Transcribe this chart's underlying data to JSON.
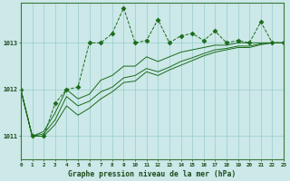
{
  "title": "Graphe pression niveau de la mer (hPa)",
  "bg_color": "#cce8e8",
  "grid_color": "#99cccc",
  "line_color": "#1a6b1a",
  "xlim": [
    0,
    23
  ],
  "ylim": [
    1010.5,
    1013.85
  ],
  "yticks": [
    1011,
    1012,
    1013
  ],
  "xticks": [
    0,
    1,
    2,
    3,
    4,
    5,
    6,
    7,
    8,
    9,
    10,
    11,
    12,
    13,
    14,
    15,
    16,
    17,
    18,
    19,
    20,
    21,
    22,
    23
  ],
  "series1": [
    1012.0,
    1011.0,
    1011.0,
    1011.7,
    1012.0,
    1012.05,
    1013.0,
    1013.0,
    1013.2,
    1013.75,
    1013.0,
    1013.05,
    1013.5,
    1013.0,
    1013.15,
    1013.2,
    1013.05,
    1013.25,
    1013.0,
    1013.05,
    1013.0,
    1013.45,
    1013.0,
    1013.0
  ],
  "series2": [
    1012.0,
    1011.0,
    1011.1,
    1011.5,
    1012.0,
    1011.8,
    1011.9,
    1012.2,
    1012.3,
    1012.5,
    1012.5,
    1012.7,
    1012.6,
    1012.7,
    1012.8,
    1012.85,
    1012.9,
    1012.95,
    1012.95,
    1013.0,
    1013.0,
    1013.0,
    1013.0,
    1013.0
  ],
  "series3": [
    1012.0,
    1011.0,
    1011.05,
    1011.35,
    1011.85,
    1011.65,
    1011.75,
    1011.95,
    1012.05,
    1012.25,
    1012.3,
    1012.45,
    1012.38,
    1012.48,
    1012.6,
    1012.68,
    1012.77,
    1012.85,
    1012.88,
    1012.93,
    1012.93,
    1012.98,
    1013.0,
    1013.0
  ],
  "series4": [
    1012.0,
    1011.0,
    1011.0,
    1011.25,
    1011.65,
    1011.45,
    1011.6,
    1011.8,
    1011.95,
    1012.15,
    1012.18,
    1012.38,
    1012.3,
    1012.42,
    1012.52,
    1012.62,
    1012.72,
    1012.8,
    1012.85,
    1012.9,
    1012.9,
    1012.96,
    1013.0,
    1013.0
  ]
}
